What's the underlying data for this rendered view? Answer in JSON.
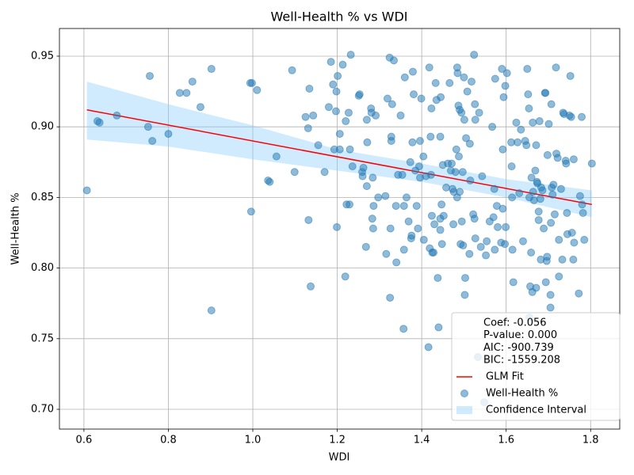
{
  "chart_data": {
    "type": "scatter",
    "title": "Well-Health % vs WDI",
    "x_label": "WDI",
    "y_label": "Well-Health %",
    "xlim": [
      0.542,
      1.869
    ],
    "ylim": [
      0.686,
      0.9696
    ],
    "xticks": [
      0.6,
      0.8,
      {
        "value": 1,
        "label": "1.0"
      },
      1.2,
      1.4,
      1.6,
      1.8
    ],
    "yticks": [
      {
        "value": 0.7,
        "label": "0.70"
      },
      0.75,
      {
        "value": 0.8,
        "label": "0.80"
      },
      0.85,
      {
        "value": 0.9,
        "label": "0.90"
      },
      0.95
    ],
    "grid": true,
    "legend": "lower right",
    "stats": [
      "Coef: -0.056",
      "P-value: 0.000",
      "AIC: -900.739",
      "BIC: -1559.208"
    ],
    "fit": {
      "name": "GLM Fit",
      "color": "#ff0000",
      "x": [
        0.607,
        1.803
      ],
      "values": [
        0.912,
        0.845
      ]
    },
    "band": {
      "name": "Confidence Interval",
      "color": "#87cefa",
      "x": [
        0.607,
        0.8,
        1.0,
        1.2,
        1.4,
        1.6,
        1.803
      ],
      "lower": [
        0.891,
        0.886,
        0.877,
        0.869,
        0.861,
        0.85,
        0.836
      ],
      "upper": [
        0.932,
        0.916,
        0.901,
        0.884,
        0.874,
        0.863,
        0.855
      ]
    },
    "series": [
      {
        "name": "Well-Health %",
        "color": "#1f77b4",
        "x": [
          0.607,
          0.632,
          0.637,
          0.678,
          0.752,
          0.756,
          0.762,
          0.8,
          0.827,
          0.843,
          0.857,
          0.876,
          0.902,
          0.902,
          0.994,
          0.998,
          0.996,
          1.01,
          1.036,
          1.04,
          1.056,
          1.093,
          1.099,
          1.125,
          1.131,
          1.132,
          1.134,
          1.137,
          1.143,
          1.155,
          1.17,
          1.18,
          1.185,
          1.19,
          1.193,
          1.197,
          1.198,
          1.199,
          1.201,
          1.206,
          1.206,
          1.213,
          1.219,
          1.22,
          1.222,
          1.227,
          1.229,
          1.23,
          1.232,
          1.236,
          1.251,
          1.253,
          1.259,
          1.26,
          1.262,
          1.268,
          1.27,
          1.27,
          1.271,
          1.28,
          1.281,
          1.283,
          1.284,
          1.285,
          1.286,
          1.291,
          1.297,
          1.314,
          1.316,
          1.319,
          1.324,
          1.325,
          1.326,
          1.328,
          1.328,
          1.33,
          1.334,
          1.339,
          1.34,
          1.344,
          1.35,
          1.354,
          1.357,
          1.358,
          1.358,
          1.36,
          1.364,
          1.369,
          1.373,
          1.375,
          1.376,
          1.378,
          1.379,
          1.381,
          1.385,
          1.388,
          1.391,
          1.394,
          1.396,
          1.396,
          1.399,
          1.404,
          1.405,
          1.41,
          1.416,
          1.418,
          1.419,
          1.421,
          1.422,
          1.423,
          1.424,
          1.425,
          1.428,
          1.43,
          1.433,
          1.435,
          1.438,
          1.44,
          1.444,
          1.444,
          1.444,
          1.445,
          1.447,
          1.448,
          1.45,
          1.452,
          1.458,
          1.462,
          1.466,
          1.469,
          1.471,
          1.473,
          1.475,
          1.476,
          1.48,
          1.482,
          1.484,
          1.484,
          1.485,
          1.487,
          1.488,
          1.49,
          1.49,
          1.492,
          1.494,
          1.495,
          1.497,
          1.498,
          1.5,
          1.501,
          1.502,
          1.503,
          1.505,
          1.508,
          1.513,
          1.514,
          1.515,
          1.518,
          1.522,
          1.524,
          1.525,
          1.526,
          1.527,
          1.527,
          1.533,
          1.536,
          1.54,
          1.543,
          1.548,
          1.552,
          1.554,
          1.561,
          1.567,
          1.57,
          1.572,
          1.573,
          1.574,
          1.578,
          1.58,
          1.588,
          1.59,
          1.592,
          1.592,
          1.594,
          1.597,
          1.598,
          1.599,
          1.602,
          1.612,
          1.613,
          1.614,
          1.615,
          1.617,
          1.624,
          1.627,
          1.631,
          1.635,
          1.64,
          1.645,
          1.648,
          1.65,
          1.652,
          1.654,
          1.655,
          1.655,
          1.657,
          1.659,
          1.66,
          1.662,
          1.663,
          1.664,
          1.666,
          1.669,
          1.671,
          1.671,
          1.673,
          1.674,
          1.677,
          1.677,
          1.679,
          1.681,
          1.682,
          1.683,
          1.686,
          1.689,
          1.692,
          1.693,
          1.694,
          1.696,
          1.697,
          1.698,
          1.701,
          1.705,
          1.705,
          1.706,
          1.707,
          1.708,
          1.71,
          1.712,
          1.715,
          1.718,
          1.719,
          1.722,
          1.725,
          1.725,
          1.73,
          1.733,
          1.735,
          1.737,
          1.741,
          1.742,
          1.744,
          1.745,
          1.75,
          1.752,
          1.754,
          1.756,
          1.76,
          1.761,
          1.759,
          1.772,
          1.775,
          1.779,
          1.78,
          1.782,
          1.785,
          1.803
        ],
        "values": [
          0.855,
          0.904,
          0.903,
          0.908,
          0.9,
          0.936,
          0.89,
          0.895,
          0.924,
          0.924,
          0.932,
          0.914,
          0.941,
          0.77,
          0.931,
          0.931,
          0.84,
          0.926,
          0.862,
          0.861,
          0.879,
          0.94,
          0.868,
          0.907,
          0.899,
          0.834,
          0.927,
          0.787,
          0.908,
          0.887,
          0.868,
          0.914,
          0.946,
          0.93,
          0.884,
          0.911,
          0.925,
          0.829,
          0.936,
          0.895,
          0.884,
          0.944,
          0.794,
          0.904,
          0.845,
          0.91,
          0.845,
          0.884,
          0.951,
          0.872,
          0.922,
          0.923,
          0.868,
          0.865,
          0.871,
          0.815,
          0.905,
          0.858,
          0.889,
          0.913,
          0.91,
          0.835,
          0.864,
          0.828,
          0.844,
          0.908,
          0.85,
          0.851,
          0.81,
          0.92,
          0.949,
          0.779,
          0.828,
          0.893,
          0.89,
          0.916,
          0.947,
          0.844,
          0.804,
          0.866,
          0.908,
          0.866,
          0.757,
          0.844,
          0.813,
          0.935,
          0.85,
          0.833,
          0.875,
          0.821,
          0.823,
          0.889,
          0.939,
          0.923,
          0.869,
          0.844,
          0.828,
          0.872,
          0.89,
          0.864,
          0.92,
          0.879,
          0.82,
          0.865,
          0.744,
          0.942,
          0.814,
          0.893,
          0.866,
          0.913,
          0.837,
          0.811,
          0.811,
          0.831,
          0.931,
          0.919,
          0.793,
          0.758,
          0.893,
          0.835,
          0.827,
          0.921,
          0.845,
          0.817,
          0.873,
          0.837,
          0.857,
          0.874,
          0.931,
          0.869,
          0.874,
          0.856,
          0.831,
          0.854,
          0.868,
          0.884,
          0.942,
          0.85,
          0.938,
          0.915,
          0.879,
          0.912,
          0.854,
          0.817,
          0.91,
          0.833,
          0.868,
          0.816,
          0.935,
          0.905,
          0.781,
          0.793,
          0.892,
          0.925,
          0.81,
          0.888,
          0.862,
          0.932,
          0.838,
          0.951,
          0.835,
          0.916,
          0.905,
          0.821,
          0.737,
          0.91,
          0.815,
          0.865,
          0.705,
          0.809,
          0.819,
          0.833,
          0.9,
          0.836,
          0.856,
          0.813,
          0.934,
          0.844,
          0.829,
          0.818,
          0.941,
          0.884,
          0.842,
          0.921,
          0.817,
          0.929,
          0.829,
          0.938,
          0.889,
          0.872,
          0.85,
          0.813,
          0.79,
          0.903,
          0.889,
          0.853,
          0.898,
          0.819,
          0.89,
          0.887,
          0.941,
          0.923,
          0.913,
          0.85,
          0.765,
          0.787,
          0.811,
          0.864,
          0.783,
          0.903,
          0.854,
          0.848,
          0.869,
          0.887,
          0.786,
          0.861,
          0.86,
          0.84,
          0.834,
          0.904,
          0.849,
          0.806,
          0.857,
          0.855,
          0.828,
          0.924,
          0.924,
          0.79,
          0.805,
          0.808,
          0.88,
          0.902,
          0.781,
          0.772,
          0.832,
          0.916,
          0.857,
          0.852,
          0.859,
          0.838,
          0.942,
          0.881,
          0.878,
          0.82,
          0.794,
          0.856,
          0.806,
          0.91,
          0.909,
          0.876,
          0.874,
          0.839,
          0.824,
          0.908,
          0.936,
          0.907,
          0.825,
          0.877,
          0.818,
          0.806,
          0.782,
          0.851,
          0.907,
          0.845,
          0.839,
          0.82,
          0.874
        ]
      }
    ]
  }
}
